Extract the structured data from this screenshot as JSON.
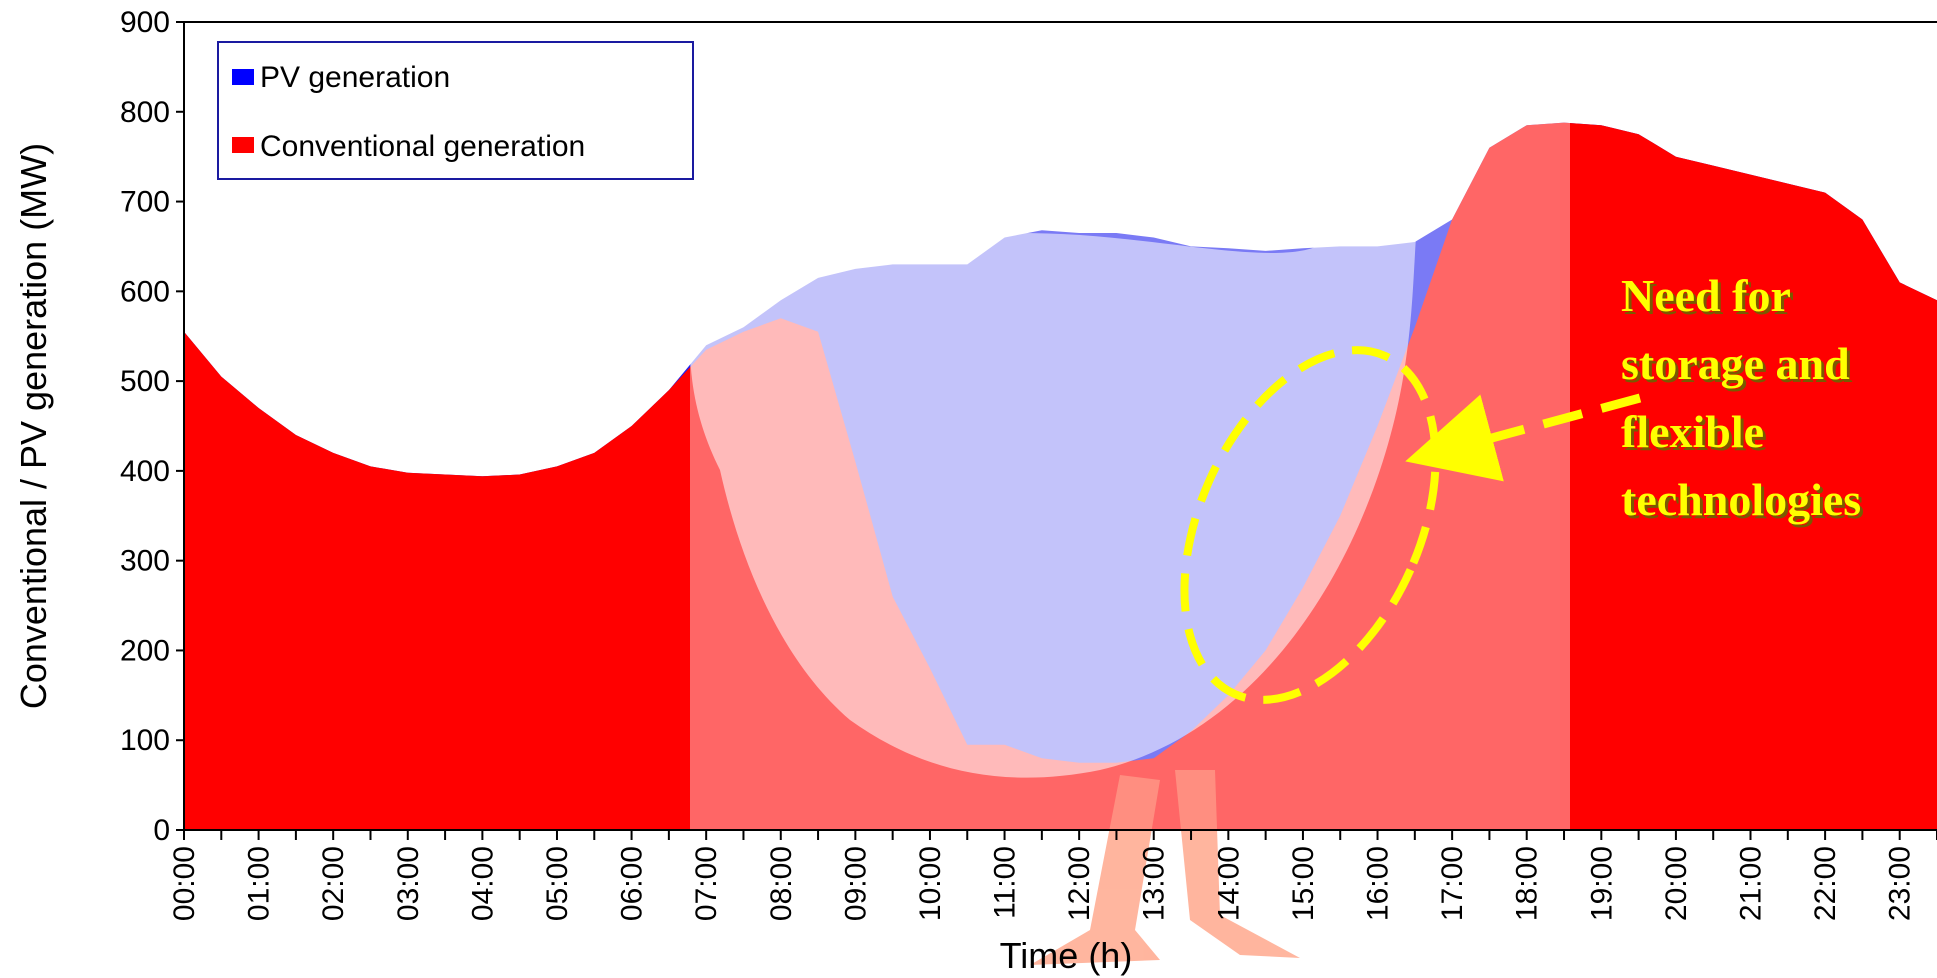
{
  "chart_data": {
    "type": "area",
    "xlabel": "Time (h)",
    "ylabel": "Conventional / PV generation (MW)",
    "ylim": [
      0,
      900
    ],
    "yticks": [
      0,
      100,
      200,
      300,
      400,
      500,
      600,
      700,
      800,
      900
    ],
    "xtick_labels": [
      "00:00",
      "01:00",
      "02:00",
      "03:00",
      "04:00",
      "05:00",
      "06:00",
      "07:00",
      "08:00",
      "09:00",
      "10:00",
      "11:00",
      "12:00",
      "13:00",
      "14:00",
      "15:00",
      "16:00",
      "17:00",
      "18:00",
      "19:00",
      "20:00",
      "21:00",
      "22:00",
      "23:00"
    ],
    "x_hours": [
      0,
      0.5,
      1,
      1.5,
      2,
      2.5,
      3,
      3.5,
      4,
      4.5,
      5,
      5.5,
      6,
      6.5,
      7,
      7.5,
      8,
      8.5,
      9,
      9.5,
      10,
      10.5,
      11,
      11.5,
      12,
      12.5,
      13,
      13.5,
      14,
      14.5,
      15,
      15.5,
      16,
      16.5,
      17,
      17.5,
      18,
      18.5,
      19,
      19.5,
      20,
      20.5,
      21,
      21.5,
      22,
      22.5,
      23,
      23.5
    ],
    "legend_position": "top-left",
    "grid": false,
    "series": [
      {
        "name": "PV generation",
        "color": "#0000ff",
        "total_values": [
          555,
          505,
          470,
          440,
          420,
          405,
          398,
          396,
          394,
          396,
          405,
          420,
          450,
          490,
          540,
          560,
          590,
          615,
          625,
          630,
          630,
          630,
          660,
          668,
          665,
          665,
          660,
          650,
          648,
          645,
          648,
          650,
          650,
          655,
          680,
          760,
          785,
          788,
          785,
          775,
          750,
          740,
          730,
          720,
          710,
          680,
          610,
          590
        ]
      },
      {
        "name": "Conventional generation",
        "color": "#ff0000",
        "values": [
          555,
          505,
          470,
          440,
          420,
          405,
          398,
          396,
          394,
          396,
          405,
          420,
          450,
          490,
          535,
          555,
          570,
          555,
          410,
          260,
          180,
          95,
          95,
          80,
          75,
          75,
          80,
          110,
          150,
          200,
          270,
          350,
          450,
          560,
          680,
          760,
          785,
          788,
          785,
          775,
          750,
          740,
          730,
          720,
          710,
          680,
          610,
          590
        ]
      }
    ],
    "annotation": "Need for storage and flexible technologies",
    "annotation_lines": [
      "Need for",
      "storage and",
      "flexible",
      "technologies"
    ]
  },
  "legend": {
    "items": [
      {
        "label": "PV generation",
        "color": "#0000ff"
      },
      {
        "label": "Conventional generation",
        "color": "#ff0000"
      }
    ]
  }
}
